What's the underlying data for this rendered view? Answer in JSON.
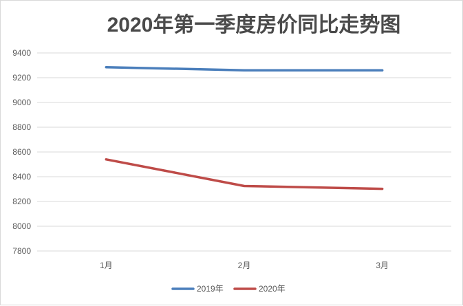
{
  "chart_data": {
    "type": "line",
    "title": "2020年第一季度房价同比走势图",
    "categories": [
      "1月",
      "2月",
      "3月"
    ],
    "series": [
      {
        "name": "2019年",
        "color": "#4a7ebb",
        "values": [
          9285,
          9260,
          9260
        ]
      },
      {
        "name": "2020年",
        "color": "#be4b48",
        "values": [
          8540,
          8325,
          8302
        ]
      }
    ],
    "ylim": [
      7800,
      9400
    ],
    "yticks": [
      7800,
      8000,
      8200,
      8400,
      8600,
      8800,
      9000,
      9200,
      9400
    ],
    "grid": true,
    "legend": "bottom"
  }
}
